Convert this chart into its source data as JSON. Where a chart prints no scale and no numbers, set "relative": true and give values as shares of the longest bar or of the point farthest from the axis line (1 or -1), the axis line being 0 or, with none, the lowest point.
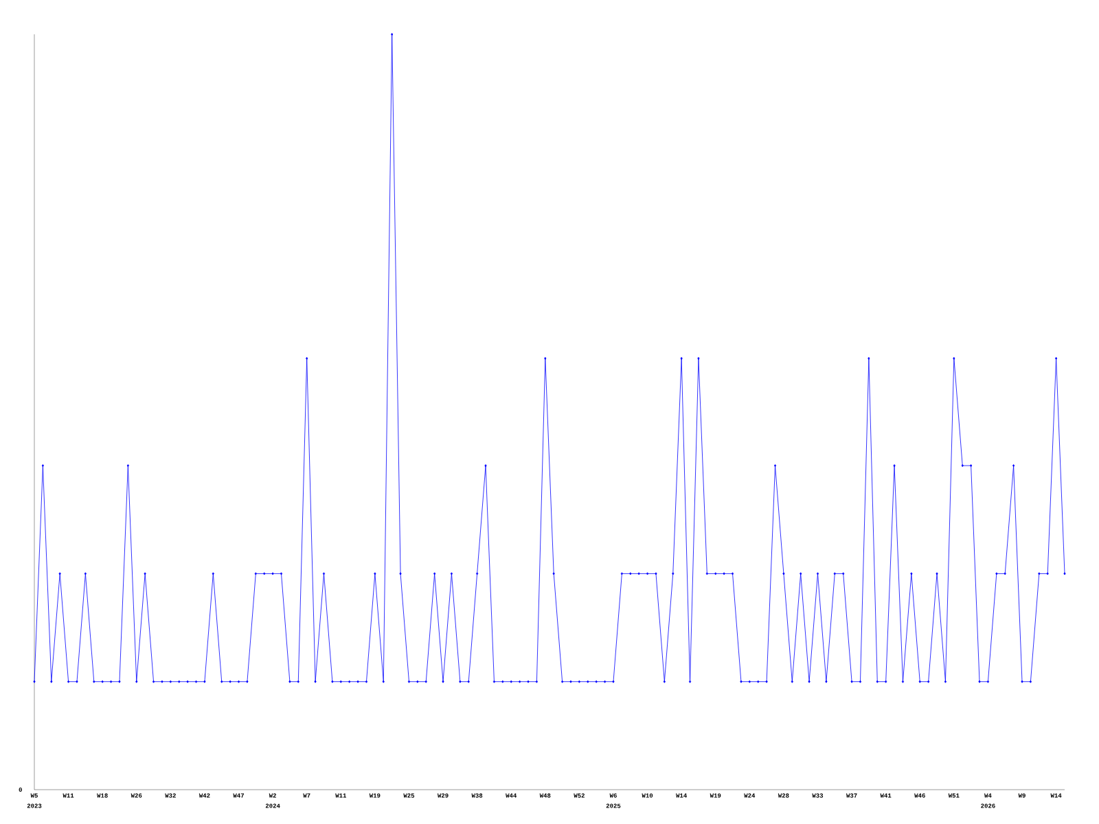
{
  "chart_data": {
    "type": "line",
    "relative": true,
    "color": "#0000ff",
    "marker": "diamond",
    "line_style": "solid",
    "grid": false,
    "categories": [
      "W5",
      null,
      null,
      null,
      "W11",
      null,
      null,
      null,
      "W18",
      null,
      null,
      null,
      "W26",
      null,
      null,
      null,
      "W32",
      null,
      null,
      null,
      "W42",
      null,
      null,
      null,
      "W47",
      null,
      null,
      null,
      "W2",
      null,
      null,
      null,
      "W7",
      null,
      null,
      null,
      "W11",
      null,
      null,
      null,
      "W19",
      null,
      null,
      null,
      "W25",
      null,
      null,
      null,
      "W29",
      null,
      null,
      null,
      "W38",
      null,
      null,
      null,
      "W44",
      null,
      null,
      null,
      "W48",
      null,
      null,
      null,
      "W52",
      null,
      null,
      null,
      "W6",
      null,
      null,
      null,
      "W10",
      null,
      null,
      null,
      "W14",
      null,
      null,
      null,
      "W19",
      null,
      null,
      null,
      "W24",
      null,
      null,
      null,
      "W28",
      null,
      null,
      null,
      "W33",
      null,
      null,
      null,
      "W37",
      null,
      null,
      null,
      "W41",
      null,
      null,
      null,
      "W46",
      null,
      null,
      null,
      "W51",
      null,
      null,
      null,
      "W4",
      null,
      null,
      null,
      "W9",
      null,
      null,
      null,
      "W14",
      null
    ],
    "values": [
      0.143,
      0.429,
      0.143,
      0.286,
      0.143,
      0.143,
      0.286,
      0.143,
      0.143,
      0.143,
      0.143,
      0.429,
      0.143,
      0.286,
      0.143,
      0.143,
      0.143,
      0.143,
      0.143,
      0.143,
      0.143,
      0.286,
      0.143,
      0.143,
      0.143,
      0.143,
      0.286,
      0.286,
      0.286,
      0.286,
      0.143,
      0.143,
      0.571,
      0.143,
      0.286,
      0.143,
      0.143,
      0.143,
      0.143,
      0.143,
      0.286,
      0.143,
      1,
      0.286,
      0.143,
      0.143,
      0.143,
      0.286,
      0.143,
      0.286,
      0.143,
      0.143,
      0.286,
      0.429,
      0.143,
      0.143,
      0.143,
      0.143,
      0.143,
      0.143,
      0.571,
      0.286,
      0.143,
      0.143,
      0.143,
      0.143,
      0.143,
      0.143,
      0.143,
      0.286,
      0.286,
      0.286,
      0.286,
      0.286,
      0.143,
      0.286,
      0.571,
      0.143,
      0.571,
      0.286,
      0.286,
      0.286,
      0.286,
      0.143,
      0.143,
      0.143,
      0.143,
      0.429,
      0.286,
      0.143,
      0.286,
      0.143,
      0.286,
      0.143,
      0.286,
      0.286,
      0.143,
      0.143,
      0.571,
      0.143,
      0.143,
      0.429,
      0.143,
      0.286,
      0.143,
      0.143,
      0.286,
      0.143,
      0.571,
      0.429,
      0.429,
      0.143,
      0.143,
      0.286,
      0.286,
      0.429,
      0.143,
      0.143,
      0.286,
      0.286,
      0.571,
      0.286
    ],
    "annotations": [
      "0",
      "2023",
      "2024",
      "2025",
      "2026"
    ]
  }
}
